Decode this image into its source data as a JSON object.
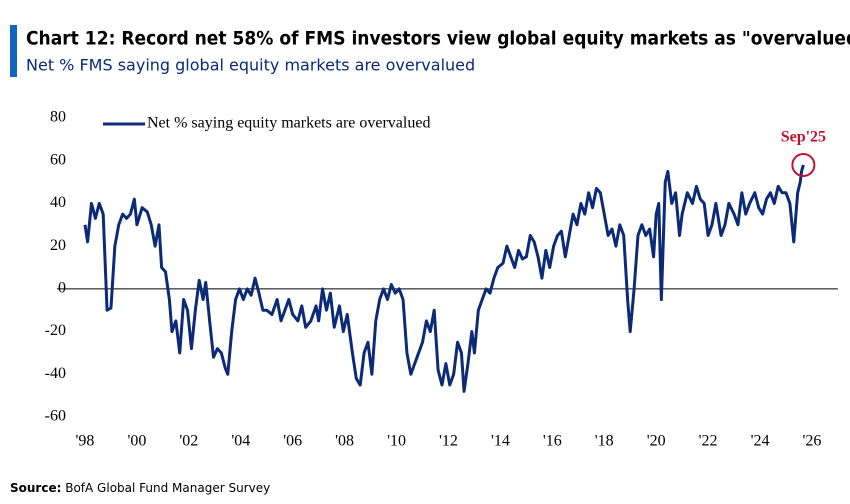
{
  "chart_data": {
    "type": "line",
    "title": "Chart 12: Record net 58% of FMS investors view global equity markets as \"overvalued\"",
    "subtitle": "Net % FMS saying global equity markets are overvalued",
    "source_label": "Source:",
    "source": "BofA Global Fund Manager Survey",
    "annotation": "Sep'25",
    "legend": "upper left",
    "xlim": [
      1997,
      2027
    ],
    "ylim": [
      -60,
      80
    ],
    "xticks": [
      {
        "value": 1998,
        "label": "'98"
      },
      {
        "value": 2000,
        "label": "'00"
      },
      {
        "value": 2002,
        "label": "'02"
      },
      {
        "value": 2004,
        "label": "'04"
      },
      {
        "value": 2006,
        "label": "'06"
      },
      {
        "value": 2008,
        "label": "'08"
      },
      {
        "value": 2010,
        "label": "'10"
      },
      {
        "value": 2012,
        "label": "'12"
      },
      {
        "value": 2014,
        "label": "'14"
      },
      {
        "value": 2016,
        "label": "'16"
      },
      {
        "value": 2018,
        "label": "'18"
      },
      {
        "value": 2020,
        "label": "'20"
      },
      {
        "value": 2022,
        "label": "'22"
      },
      {
        "value": 2024,
        "label": "'24"
      },
      {
        "value": 2026,
        "label": "'26"
      }
    ],
    "yticks": [
      -60,
      -40,
      -20,
      0,
      20,
      40,
      60,
      80
    ],
    "x": [
      1998.0,
      1998.1,
      1998.25,
      1998.4,
      1998.55,
      1998.7,
      1998.85,
      1999.0,
      1999.15,
      1999.3,
      1999.45,
      1999.6,
      1999.75,
      1999.9,
      2000.0,
      2000.2,
      2000.4,
      2000.55,
      2000.7,
      2000.85,
      2000.95,
      2001.1,
      2001.25,
      2001.35,
      2001.5,
      2001.65,
      2001.8,
      2001.95,
      2002.1,
      2002.25,
      2002.4,
      2002.55,
      2002.65,
      2002.8,
      2002.95,
      2003.1,
      2003.25,
      2003.4,
      2003.5,
      2003.65,
      2003.8,
      2003.95,
      2004.1,
      2004.25,
      2004.4,
      2004.55,
      2004.7,
      2004.85,
      2005.0,
      2005.2,
      2005.4,
      2005.55,
      2005.7,
      2005.85,
      2006.0,
      2006.2,
      2006.35,
      2006.5,
      2006.7,
      2006.9,
      2007.0,
      2007.15,
      2007.3,
      2007.45,
      2007.6,
      2007.8,
      2007.95,
      2008.1,
      2008.3,
      2008.45,
      2008.6,
      2008.75,
      2008.9,
      2009.05,
      2009.2,
      2009.35,
      2009.5,
      2009.65,
      2009.8,
      2009.95,
      2010.1,
      2010.25,
      2010.4,
      2010.55,
      2010.7,
      2010.85,
      2011.0,
      2011.15,
      2011.3,
      2011.45,
      2011.6,
      2011.75,
      2011.9,
      2012.05,
      2012.2,
      2012.35,
      2012.5,
      2012.6,
      2012.75,
      2012.9,
      2013.0,
      2013.15,
      2013.3,
      2013.45,
      2013.6,
      2013.75,
      2013.9,
      2014.1,
      2014.25,
      2014.4,
      2014.55,
      2014.7,
      2014.85,
      2015.0,
      2015.15,
      2015.3,
      2015.45,
      2015.6,
      2015.75,
      2015.9,
      2016.05,
      2016.2,
      2016.35,
      2016.5,
      2016.65,
      2016.8,
      2016.95,
      2017.1,
      2017.25,
      2017.4,
      2017.55,
      2017.7,
      2017.85,
      2018.0,
      2018.15,
      2018.3,
      2018.45,
      2018.6,
      2018.75,
      2018.9,
      2019.0,
      2019.15,
      2019.3,
      2019.45,
      2019.6,
      2019.75,
      2019.9,
      2020.0,
      2020.1,
      2020.2,
      2020.35,
      2020.45,
      2020.6,
      2020.75,
      2020.9,
      2021.0,
      2021.2,
      2021.4,
      2021.55,
      2021.7,
      2021.85,
      2022.0,
      2022.15,
      2022.3,
      2022.5,
      2022.65,
      2022.8,
      2023.0,
      2023.15,
      2023.3,
      2023.45,
      2023.6,
      2023.8,
      2023.95,
      2024.1,
      2024.25,
      2024.4,
      2024.55,
      2024.7,
      2024.85,
      2025.0,
      2025.15,
      2025.3,
      2025.45,
      2025.55,
      2025.6,
      2025.67
    ],
    "series": [
      {
        "name": "Net % saying equity markets are overvalued",
        "color": "#0b2a78",
        "values": [
          30,
          22,
          40,
          33,
          40,
          35,
          -10,
          -9,
          20,
          30,
          35,
          33,
          35,
          42,
          30,
          38,
          36,
          30,
          20,
          30,
          10,
          8,
          -5,
          -20,
          -15,
          -30,
          -5,
          -10,
          -28,
          -10,
          4,
          -5,
          3,
          -15,
          -32,
          -28,
          -30,
          -37,
          -40,
          -20,
          -5,
          0,
          -5,
          0,
          -3,
          5,
          -2,
          -10,
          -10,
          -12,
          -5,
          -15,
          -10,
          -5,
          -12,
          -15,
          -8,
          -18,
          -15,
          -8,
          -15,
          0,
          -10,
          -2,
          -18,
          -8,
          -20,
          -12,
          -30,
          -42,
          -45,
          -30,
          -25,
          -40,
          -15,
          -5,
          0,
          -5,
          2,
          -2,
          0,
          -5,
          -30,
          -40,
          -35,
          -30,
          -25,
          -15,
          -20,
          -10,
          -38,
          -45,
          -35,
          -45,
          -40,
          -25,
          -30,
          -48,
          -35,
          -20,
          -30,
          -10,
          -5,
          0,
          -2,
          5,
          10,
          12,
          20,
          15,
          10,
          18,
          14,
          15,
          25,
          22,
          15,
          5,
          18,
          10,
          20,
          25,
          27,
          15,
          25,
          35,
          30,
          40,
          35,
          45,
          38,
          47,
          45,
          35,
          25,
          28,
          20,
          30,
          25,
          -5,
          -20,
          0,
          25,
          30,
          25,
          28,
          15,
          35,
          40,
          -5,
          50,
          55,
          40,
          45,
          25,
          35,
          45,
          40,
          48,
          42,
          40,
          25,
          30,
          40,
          25,
          30,
          40,
          35,
          30,
          45,
          35,
          40,
          45,
          38,
          35,
          42,
          45,
          40,
          48,
          45,
          45,
          40,
          22,
          45,
          50,
          55,
          58
        ]
      }
    ]
  }
}
